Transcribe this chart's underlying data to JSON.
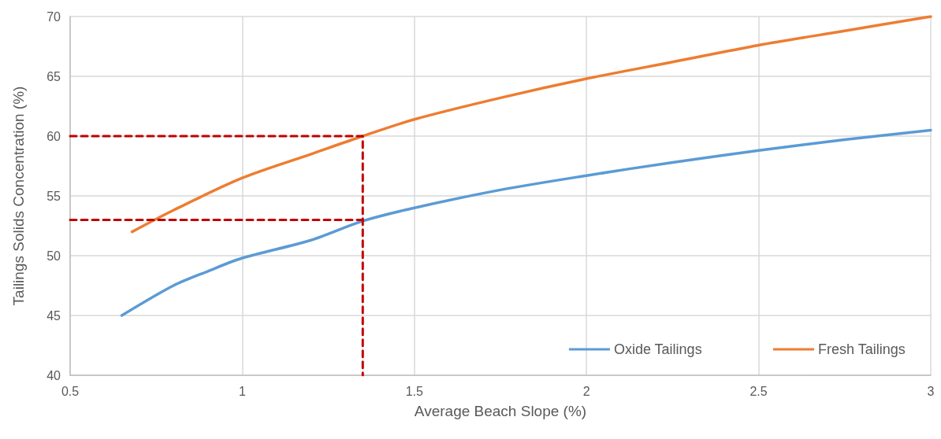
{
  "chart_data": {
    "type": "line",
    "xlabel": "Average Beach Slope (%)",
    "ylabel": "Tailings Solids Concentration (%)",
    "xlim": [
      0.5,
      3
    ],
    "xticks": [
      0.5,
      1,
      1.5,
      2,
      2.5,
      3
    ],
    "ylim": [
      40,
      70
    ],
    "yticks": [
      40,
      45,
      50,
      55,
      60,
      65,
      70
    ],
    "grid": true,
    "legend": "bottom right",
    "marker": "none",
    "series": [
      {
        "name": "Oxide Tailings",
        "color": "#5b9bd5",
        "x": [
          0.65,
          0.8,
          0.9,
          1.0,
          1.2,
          1.35,
          1.5,
          1.75,
          2.0,
          2.25,
          2.5,
          2.75,
          3.0
        ],
        "values": [
          45,
          47.5,
          48.7,
          49.8,
          51.3,
          52.9,
          54.0,
          55.5,
          56.7,
          57.8,
          58.8,
          59.7,
          60.5
        ]
      },
      {
        "name": "Fresh Tailings",
        "color": "#ed7d31",
        "x": [
          0.68,
          0.8,
          1.0,
          1.2,
          1.35,
          1.5,
          1.75,
          2.0,
          2.25,
          2.5,
          2.75,
          3.0
        ],
        "values": [
          52,
          53.8,
          56.5,
          58.5,
          60,
          61.4,
          63.2,
          64.8,
          66.2,
          67.6,
          68.8,
          70
        ]
      },
      {
        "color": "#c00000",
        "line_style": "dashed",
        "x": [
          0.5,
          1.35,
          1.35
        ],
        "values": [
          60,
          60,
          40
        ]
      },
      {
        "color": "#c00000",
        "line_style": "dashed",
        "x": [
          0.5,
          1.35
        ],
        "values": [
          53,
          53
        ]
      }
    ]
  }
}
